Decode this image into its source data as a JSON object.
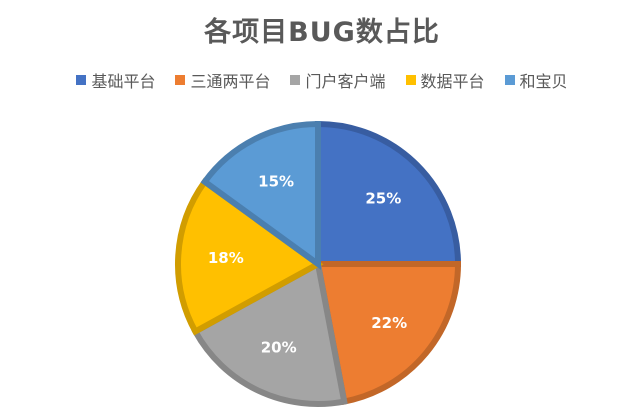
{
  "chart_data": {
    "type": "pie",
    "title": "各项目BUG数占比",
    "categories": [
      "基础平台",
      "三通两平台",
      "门户客户端",
      "数据平台",
      "和宝贝"
    ],
    "values": [
      25,
      22,
      20,
      18,
      15
    ],
    "labels": [
      "25%",
      "22%",
      "20%",
      "18%",
      "15%"
    ],
    "colors": [
      "#4472C4",
      "#ED7D31",
      "#A5A5A5",
      "#FFC000",
      "#5B9BD5"
    ],
    "legend": "top"
  }
}
